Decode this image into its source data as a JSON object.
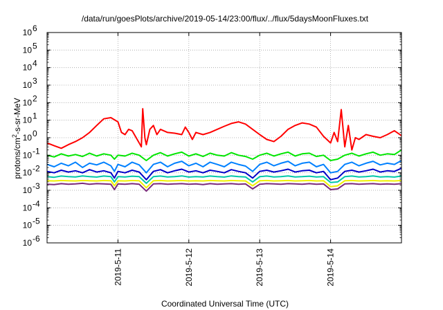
{
  "chart_data": {
    "type": "line",
    "title": "/data/run/goesPlots/archive/2019-05-14/23:00/flux/../flux/5daysMoonFluxes.txt",
    "xlabel": "Coordinated Universal Time (UTC)",
    "ylabel_main": "protons/cm",
    "ylabel_sup": "2",
    "ylabel_rest": "-s-sr-MeV",
    "yscale": "log",
    "ylim": [
      1e-06,
      1000000.0
    ],
    "xlim": [
      0,
      5
    ],
    "grid": true,
    "x_ticks": [
      {
        "value": 1,
        "label": "2019-5-11"
      },
      {
        "value": 2,
        "label": "2019-5-12"
      },
      {
        "value": 3,
        "label": "2019-5-13"
      },
      {
        "value": 4,
        "label": "2019-5-14"
      }
    ],
    "y_ticks": [
      {
        "value": 1e-06,
        "base": "10",
        "exp": "-6"
      },
      {
        "value": 1e-05,
        "base": "10",
        "exp": "-5"
      },
      {
        "value": 0.0001,
        "base": "10",
        "exp": "-4"
      },
      {
        "value": 0.001,
        "base": "10",
        "exp": "-3"
      },
      {
        "value": 0.01,
        "base": "10",
        "exp": "-2"
      },
      {
        "value": 0.1,
        "base": "10",
        "exp": "-1"
      },
      {
        "value": 1,
        "base": "10",
        "exp": "0"
      },
      {
        "value": 10.0,
        "base": "10",
        "exp": "1"
      },
      {
        "value": 100.0,
        "base": "10",
        "exp": "2"
      },
      {
        "value": 1000.0,
        "base": "10",
        "exp": "3"
      },
      {
        "value": 10000.0,
        "base": "10",
        "exp": "4"
      },
      {
        "value": 100000.0,
        "base": "10",
        "exp": "5"
      },
      {
        "value": 1000000.0,
        "base": "10",
        "exp": "6"
      }
    ],
    "series": [
      {
        "color": "#7b2a7b",
        "x": [
          0,
          0.1,
          0.2,
          0.3,
          0.4,
          0.5,
          0.6,
          0.7,
          0.8,
          0.9,
          0.95,
          1.0,
          1.1,
          1.2,
          1.3,
          1.4,
          1.5,
          1.6,
          1.7,
          1.8,
          1.9,
          2.0,
          2.1,
          2.2,
          2.3,
          2.4,
          2.5,
          2.6,
          2.7,
          2.8,
          2.9,
          3.0,
          3.1,
          3.2,
          3.3,
          3.4,
          3.5,
          3.6,
          3.7,
          3.8,
          3.9,
          4.0,
          4.1,
          4.2,
          4.3,
          4.4,
          4.5,
          4.6,
          4.7,
          4.8,
          4.9,
          5.0
        ],
        "y": [
          0.0022,
          0.0021,
          0.0024,
          0.0022,
          0.0023,
          0.0025,
          0.0022,
          0.0024,
          0.0023,
          0.0022,
          0.0011,
          0.0023,
          0.0022,
          0.0024,
          0.0022,
          0.0009,
          0.0023,
          0.0024,
          0.0022,
          0.0023,
          0.0024,
          0.0022,
          0.0023,
          0.0021,
          0.0024,
          0.0022,
          0.0023,
          0.0024,
          0.0022,
          0.0023,
          0.0012,
          0.0022,
          0.0024,
          0.0023,
          0.0022,
          0.0024,
          0.0023,
          0.0022,
          0.0024,
          0.0022,
          0.0023,
          0.0011,
          0.0012,
          0.0023,
          0.0024,
          0.0022,
          0.0023,
          0.0024,
          0.0022,
          0.0023,
          0.0022,
          0.0024
        ]
      },
      {
        "color": "#f0f000",
        "x": [
          0,
          0.1,
          0.2,
          0.3,
          0.4,
          0.5,
          0.6,
          0.7,
          0.8,
          0.9,
          0.95,
          1.0,
          1.1,
          1.2,
          1.3,
          1.4,
          1.5,
          1.6,
          1.7,
          1.8,
          1.9,
          2.0,
          2.1,
          2.2,
          2.3,
          2.4,
          2.5,
          2.6,
          2.7,
          2.8,
          2.9,
          3.0,
          3.1,
          3.2,
          3.3,
          3.4,
          3.5,
          3.6,
          3.7,
          3.8,
          3.9,
          4.0,
          4.1,
          4.2,
          4.3,
          4.4,
          4.5,
          4.6,
          4.7,
          4.8,
          4.9,
          5.0
        ],
        "y": [
          0.0035,
          0.0034,
          0.0036,
          0.0035,
          0.0034,
          0.0036,
          0.0035,
          0.0034,
          0.0036,
          0.0035,
          0.0018,
          0.0035,
          0.0034,
          0.0036,
          0.0035,
          0.0014,
          0.0035,
          0.0036,
          0.0034,
          0.0035,
          0.0036,
          0.0034,
          0.0035,
          0.0034,
          0.0036,
          0.0035,
          0.0034,
          0.0036,
          0.0035,
          0.0034,
          0.0018,
          0.0035,
          0.0036,
          0.0034,
          0.0035,
          0.0036,
          0.0034,
          0.0035,
          0.0036,
          0.0034,
          0.0035,
          0.0016,
          0.0018,
          0.0035,
          0.0036,
          0.0034,
          0.0035,
          0.0036,
          0.0034,
          0.0035,
          0.0034,
          0.0036
        ]
      },
      {
        "color": "#00c8a8",
        "x": [
          0,
          0.1,
          0.2,
          0.3,
          0.4,
          0.5,
          0.6,
          0.7,
          0.8,
          0.9,
          0.95,
          1.0,
          1.1,
          1.2,
          1.3,
          1.4,
          1.5,
          1.6,
          1.7,
          1.8,
          1.9,
          2.0,
          2.1,
          2.2,
          2.3,
          2.4,
          2.5,
          2.6,
          2.7,
          2.8,
          2.9,
          3.0,
          3.1,
          3.2,
          3.3,
          3.4,
          3.5,
          3.6,
          3.7,
          3.8,
          3.9,
          4.0,
          4.1,
          4.2,
          4.3,
          4.4,
          4.5,
          4.6,
          4.7,
          4.8,
          4.9,
          5.0
        ],
        "y": [
          0.006,
          0.0055,
          0.0065,
          0.006,
          0.0058,
          0.0066,
          0.006,
          0.0057,
          0.0065,
          0.006,
          0.003,
          0.006,
          0.0058,
          0.0064,
          0.006,
          0.0025,
          0.006,
          0.0065,
          0.0058,
          0.006,
          0.0066,
          0.0057,
          0.006,
          0.0058,
          0.0065,
          0.006,
          0.0057,
          0.0066,
          0.006,
          0.0058,
          0.003,
          0.006,
          0.0065,
          0.0058,
          0.006,
          0.0066,
          0.0058,
          0.006,
          0.0064,
          0.0058,
          0.006,
          0.0028,
          0.003,
          0.006,
          0.0065,
          0.0058,
          0.006,
          0.0066,
          0.0058,
          0.006,
          0.0057,
          0.0065
        ]
      },
      {
        "color": "#0000c8",
        "x": [
          0,
          0.1,
          0.2,
          0.3,
          0.4,
          0.5,
          0.6,
          0.7,
          0.8,
          0.9,
          0.95,
          1.0,
          1.1,
          1.2,
          1.3,
          1.4,
          1.5,
          1.6,
          1.7,
          1.8,
          1.9,
          2.0,
          2.1,
          2.2,
          2.3,
          2.4,
          2.5,
          2.6,
          2.7,
          2.8,
          2.9,
          3.0,
          3.1,
          3.2,
          3.3,
          3.4,
          3.5,
          3.6,
          3.7,
          3.8,
          3.9,
          4.0,
          4.1,
          4.2,
          4.3,
          4.4,
          4.5,
          4.6,
          4.7,
          4.8,
          4.9,
          5.0
        ],
        "y": [
          0.012,
          0.01,
          0.014,
          0.011,
          0.013,
          0.01,
          0.015,
          0.011,
          0.013,
          0.01,
          0.005,
          0.012,
          0.01,
          0.014,
          0.011,
          0.004,
          0.012,
          0.015,
          0.01,
          0.013,
          0.016,
          0.011,
          0.013,
          0.01,
          0.014,
          0.012,
          0.01,
          0.015,
          0.012,
          0.01,
          0.005,
          0.012,
          0.014,
          0.011,
          0.013,
          0.016,
          0.011,
          0.013,
          0.014,
          0.01,
          0.012,
          0.004,
          0.005,
          0.012,
          0.014,
          0.011,
          0.013,
          0.016,
          0.011,
          0.013,
          0.012,
          0.018
        ]
      },
      {
        "color": "#0080ff",
        "x": [
          0,
          0.1,
          0.2,
          0.3,
          0.4,
          0.5,
          0.6,
          0.7,
          0.8,
          0.9,
          0.95,
          1.0,
          1.1,
          1.2,
          1.3,
          1.4,
          1.5,
          1.6,
          1.7,
          1.8,
          1.9,
          2.0,
          2.1,
          2.2,
          2.3,
          2.4,
          2.5,
          2.6,
          2.7,
          2.8,
          2.9,
          3.0,
          3.1,
          3.2,
          3.3,
          3.4,
          3.5,
          3.6,
          3.7,
          3.8,
          3.9,
          4.0,
          4.1,
          4.2,
          4.3,
          4.4,
          4.5,
          4.6,
          4.7,
          4.8,
          4.9,
          5.0
        ],
        "y": [
          0.03,
          0.022,
          0.035,
          0.025,
          0.04,
          0.02,
          0.035,
          0.028,
          0.04,
          0.025,
          0.012,
          0.03,
          0.022,
          0.04,
          0.028,
          0.01,
          0.03,
          0.04,
          0.022,
          0.035,
          0.045,
          0.025,
          0.035,
          0.022,
          0.04,
          0.03,
          0.022,
          0.04,
          0.03,
          0.024,
          0.012,
          0.03,
          0.04,
          0.025,
          0.035,
          0.045,
          0.025,
          0.035,
          0.04,
          0.022,
          0.03,
          0.01,
          0.012,
          0.03,
          0.04,
          0.025,
          0.035,
          0.045,
          0.028,
          0.035,
          0.03,
          0.05
        ]
      },
      {
        "color": "#00e600",
        "x": [
          0,
          0.1,
          0.2,
          0.3,
          0.4,
          0.5,
          0.6,
          0.7,
          0.8,
          0.9,
          0.95,
          1.0,
          1.1,
          1.2,
          1.3,
          1.4,
          1.5,
          1.6,
          1.7,
          1.8,
          1.9,
          2.0,
          2.1,
          2.2,
          2.3,
          2.4,
          2.5,
          2.6,
          2.7,
          2.8,
          2.9,
          3.0,
          3.1,
          3.2,
          3.3,
          3.4,
          3.5,
          3.6,
          3.7,
          3.8,
          3.9,
          4.0,
          4.1,
          4.2,
          4.3,
          4.4,
          4.5,
          4.6,
          4.7,
          4.8,
          4.9,
          5.0
        ],
        "y": [
          0.1,
          0.08,
          0.12,
          0.09,
          0.11,
          0.085,
          0.13,
          0.09,
          0.12,
          0.1,
          0.06,
          0.1,
          0.09,
          0.13,
          0.1,
          0.05,
          0.1,
          0.14,
          0.09,
          0.12,
          0.15,
          0.09,
          0.12,
          0.085,
          0.13,
          0.1,
          0.09,
          0.14,
          0.1,
          0.085,
          0.06,
          0.1,
          0.13,
          0.09,
          0.12,
          0.15,
          0.09,
          0.12,
          0.13,
          0.085,
          0.1,
          0.05,
          0.06,
          0.1,
          0.13,
          0.09,
          0.12,
          0.15,
          0.1,
          0.12,
          0.11,
          0.2
        ]
      },
      {
        "color": "#ff0000",
        "x": [
          0,
          0.1,
          0.2,
          0.3,
          0.4,
          0.5,
          0.6,
          0.7,
          0.8,
          0.9,
          1.0,
          1.05,
          1.1,
          1.15,
          1.2,
          1.3,
          1.33,
          1.35,
          1.38,
          1.4,
          1.45,
          1.5,
          1.55,
          1.6,
          1.7,
          1.8,
          1.9,
          1.95,
          2.0,
          2.05,
          2.1,
          2.2,
          2.3,
          2.4,
          2.5,
          2.6,
          2.7,
          2.8,
          2.9,
          3.0,
          3.1,
          3.2,
          3.3,
          3.4,
          3.5,
          3.6,
          3.7,
          3.8,
          3.9,
          4.0,
          4.05,
          4.1,
          4.15,
          4.2,
          4.25,
          4.3,
          4.35,
          4.4,
          4.5,
          4.6,
          4.7,
          4.8,
          4.9,
          5.0
        ],
        "y": [
          0.5,
          0.35,
          0.25,
          0.4,
          0.6,
          1.0,
          2.0,
          5.0,
          12.0,
          14.0,
          8.0,
          2.0,
          1.5,
          3.0,
          2.5,
          0.5,
          0.3,
          45.0,
          1.0,
          0.4,
          3.0,
          5.0,
          1.5,
          3.0,
          2.0,
          1.8,
          1.5,
          4.0,
          2.0,
          0.8,
          2.0,
          1.5,
          2.0,
          3.0,
          4.5,
          6.5,
          8.0,
          6.0,
          3.0,
          1.5,
          0.8,
          0.6,
          1.2,
          3.0,
          5.0,
          7.0,
          6.0,
          4.0,
          1.2,
          0.5,
          2.0,
          0.6,
          40.0,
          0.3,
          5.0,
          0.2,
          1.0,
          0.8,
          1.5,
          1.2,
          1.0,
          1.5,
          2.5,
          1.3
        ]
      }
    ]
  }
}
